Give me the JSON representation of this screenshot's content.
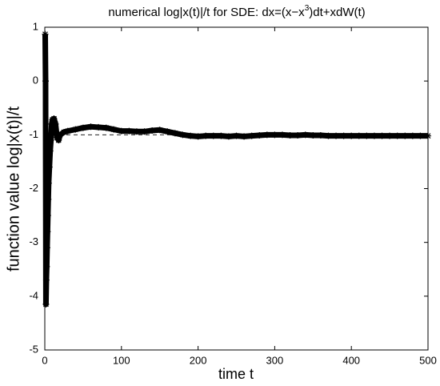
{
  "chart_data": {
    "type": "line",
    "title": [
      "numerical log|x(t)|/t for SDE: dx=(x−x",
      "3",
      ")dt+xdW(t)"
    ],
    "xlabel": "time t",
    "ylabel": "function value log|x(t)|/t",
    "xlim": [
      0,
      500
    ],
    "xticks": [
      0,
      100,
      200,
      300,
      400,
      500
    ],
    "ylim": [
      -5,
      1
    ],
    "yticks": [
      -5,
      -4,
      -3,
      -2,
      -1,
      0,
      1
    ],
    "reference_line": -1,
    "series": [
      {
        "color": "#000000",
        "marker": "*",
        "x": [
          0.5,
          1,
          1.5,
          2,
          2.5,
          3,
          3.5,
          4,
          4.5,
          5,
          6,
          7,
          8,
          9,
          10,
          12,
          14,
          16,
          18,
          20,
          25,
          30,
          40,
          50,
          60,
          70,
          80,
          90,
          100,
          110,
          120,
          130,
          140,
          150,
          160,
          170,
          180,
          190,
          200,
          210,
          220,
          230,
          240,
          250,
          260,
          270,
          280,
          290,
          300,
          310,
          320,
          330,
          340,
          350,
          360,
          370,
          380,
          390,
          400,
          410,
          420,
          430,
          440,
          450,
          460,
          470,
          480,
          490,
          500
        ],
        "values": [
          0.87,
          0,
          -4.15,
          -3.7,
          -3.45,
          -3.1,
          -2.8,
          -2.5,
          -2.2,
          -1.9,
          -1.6,
          -1.3,
          -1.1,
          -0.8,
          -0.72,
          -0.7,
          -0.8,
          -1.05,
          -1.1,
          -1.0,
          -0.95,
          -0.93,
          -0.9,
          -0.87,
          -0.85,
          -0.86,
          -0.87,
          -0.9,
          -0.93,
          -0.93,
          -0.94,
          -0.94,
          -0.92,
          -0.91,
          -0.94,
          -0.97,
          -1.0,
          -1.02,
          -1.03,
          -1.02,
          -1.02,
          -1.02,
          -1.03,
          -1.02,
          -1.03,
          -1.02,
          -1.01,
          -1.0,
          -1.0,
          -1.0,
          -1.01,
          -1.01,
          -1.0,
          -1.01,
          -1.01,
          -1.02,
          -1.02,
          -1.02,
          -1.02,
          -1.02,
          -1.02,
          -1.02,
          -1.02,
          -1.02,
          -1.02,
          -1.02,
          -1.02,
          -1.02,
          -1.02
        ]
      }
    ]
  }
}
